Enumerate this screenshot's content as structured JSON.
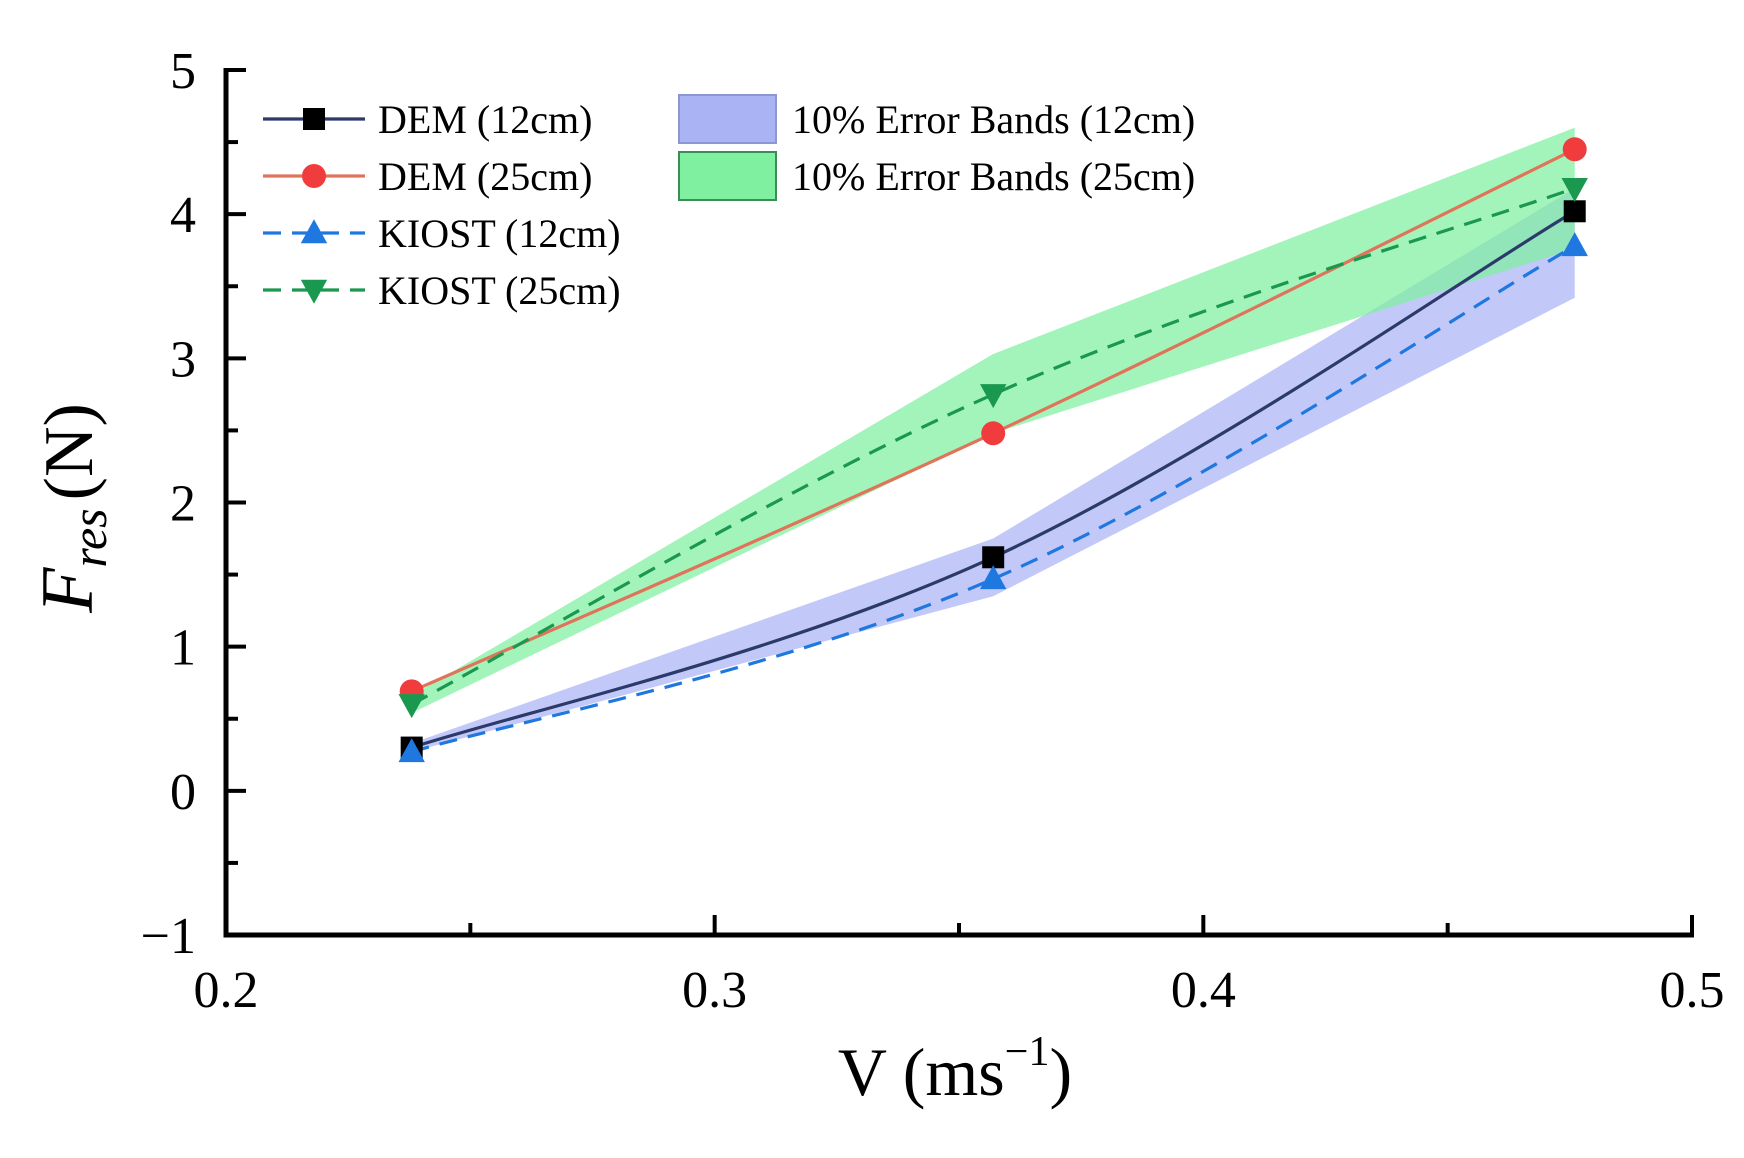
{
  "chart_data": {
    "type": "line",
    "title": "",
    "xlabel": "V (ms⁻¹)",
    "xlabel_parts": {
      "base": "V (ms",
      "sup": "−1",
      "close": ")"
    },
    "ylabel": "F_res (N)",
    "ylabel_parts": {
      "main": "F",
      "sub": "res",
      "unit": "(N)"
    },
    "xlim": [
      0.2,
      0.5
    ],
    "ylim": [
      -1,
      5
    ],
    "x_major_ticks": [
      0.2,
      0.3,
      0.4,
      0.5
    ],
    "x_tick_labels": [
      "0.2",
      "0.3",
      "0.4",
      "0.5"
    ],
    "x_minor_ticks": [
      0.25,
      0.35,
      0.45
    ],
    "y_major_ticks": [
      -1,
      0,
      1,
      2,
      3,
      4,
      5
    ],
    "y_tick_labels": [
      "−1",
      "0",
      "1",
      "2",
      "3",
      "4",
      "5"
    ],
    "y_minor_ticks": [
      -0.5,
      0.5,
      1.5,
      2.5,
      3.5,
      4.5
    ],
    "grid": false,
    "legend_placement": "top-left",
    "series": [
      {
        "name": "DEM (12cm)",
        "color": "#000000",
        "line_color": "#2b3a6b",
        "dash": "solid",
        "marker": "square",
        "x": [
          0.238,
          0.357,
          0.476
        ],
        "y": [
          0.3,
          1.62,
          4.02
        ]
      },
      {
        "name": "DEM (25cm)",
        "color": "#f03c3c",
        "line_color": "#e0745a",
        "dash": "solid",
        "marker": "circle",
        "x": [
          0.238,
          0.357,
          0.476
        ],
        "y": [
          0.69,
          2.48,
          4.45
        ]
      },
      {
        "name": "KIOST (12cm)",
        "color": "#1f77e0",
        "line_color": "#1f77e0",
        "dash": "dashed",
        "marker": "triangle-up",
        "x": [
          0.238,
          0.357,
          0.476
        ],
        "y": [
          0.27,
          1.47,
          3.78
        ]
      },
      {
        "name": "KIOST (25cm)",
        "color": "#1a9850",
        "line_color": "#1a9850",
        "dash": "dashed",
        "marker": "triangle-down",
        "x": [
          0.238,
          0.357,
          0.476
        ],
        "y": [
          0.6,
          2.75,
          4.18
        ]
      }
    ],
    "error_bands": [
      {
        "name": "10% Error Bands (12cm)",
        "color": "#aab4f5",
        "border": "#8c96d2",
        "x": [
          0.238,
          0.357,
          0.476
        ],
        "lower": [
          0.27,
          1.35,
          3.42
        ],
        "upper": [
          0.33,
          1.75,
          4.18
        ]
      },
      {
        "name": "10% Error Bands (25cm)",
        "color": "#7ef0a0",
        "border": "#3c8c5a",
        "x": [
          0.238,
          0.357,
          0.476
        ],
        "lower": [
          0.54,
          2.48,
          3.76
        ],
        "upper": [
          0.66,
          3.03,
          4.6
        ]
      }
    ]
  }
}
